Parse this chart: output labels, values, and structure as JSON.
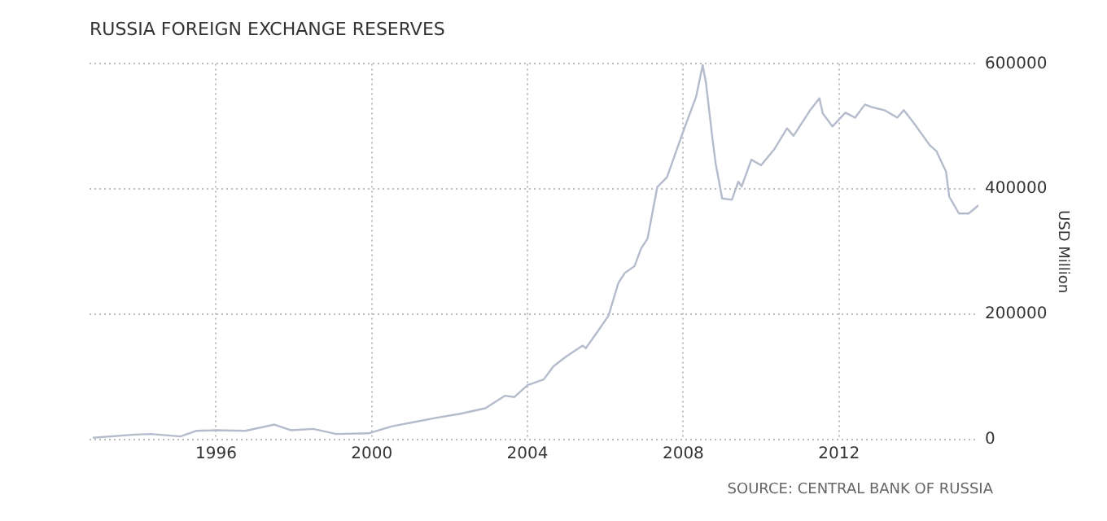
{
  "chart_data": {
    "type": "line",
    "title": "RUSSIA FOREIGN EXCHANGE RESERVES",
    "ylabel": "USD Million",
    "annotations": [
      "SOURCE: CENTRAL BANK OF RUSSIA"
    ],
    "x": [
      "1992-11",
      "1993-12",
      "1994-05",
      "1995-02",
      "1995-07",
      "1996-01",
      "1996-10",
      "1997-07",
      "1997-12",
      "1998-07",
      "1999-02",
      "1999-12",
      "2000-07",
      "2001-02",
      "2001-09",
      "2002-04",
      "2002-12",
      "2003-06",
      "2003-09",
      "2004-01",
      "2004-06",
      "2004-09",
      "2005-01",
      "2005-06",
      "2005-07",
      "2005-10",
      "2006-02",
      "2006-05",
      "2006-07",
      "2006-10",
      "2006-12",
      "2007-02",
      "2007-05",
      "2007-08",
      "2008-01",
      "2008-05",
      "2008-07",
      "2008-08",
      "2008-10",
      "2008-11",
      "2009-01",
      "2009-04",
      "2009-06",
      "2009-07",
      "2009-10",
      "2010-01",
      "2010-05",
      "2010-09",
      "2010-11",
      "2011-04",
      "2011-07",
      "2011-08",
      "2011-11",
      "2012-03",
      "2012-06",
      "2012-09",
      "2012-11",
      "2013-03",
      "2013-07",
      "2013-09",
      "2013-12",
      "2014-05",
      "2014-07",
      "2014-10",
      "2014-11",
      "2015-02",
      "2015-05",
      "2015-08"
    ],
    "series": [
      {
        "color": "#b4bccc",
        "values": [
          3000,
          8000,
          9000,
          5000,
          14000,
          15000,
          14000,
          24000,
          15000,
          17000,
          9000,
          10000,
          21000,
          28000,
          35000,
          41000,
          50000,
          70000,
          68000,
          87000,
          96000,
          117000,
          133000,
          150000,
          146000,
          168000,
          198000,
          250000,
          266000,
          277000,
          305000,
          321000,
          403000,
          419000,
          492000,
          548000,
          598000,
          570000,
          481000,
          441000,
          385000,
          383000,
          412000,
          404000,
          447000,
          438000,
          463000,
          497000,
          485000,
          525000,
          545000,
          521000,
          500000,
          522000,
          514000,
          535000,
          531000,
          526000,
          514000,
          526000,
          506000,
          470000,
          461000,
          428000,
          388000,
          361000,
          361000,
          374000
        ]
      }
    ],
    "xlim": [
      "1992-10",
      "2015-08"
    ],
    "xticks": [
      "1996",
      "2000",
      "2004",
      "2008",
      "2012"
    ],
    "ylim": [
      0,
      600000
    ],
    "yticks": [
      0,
      200000,
      400000,
      600000
    ],
    "grid": true,
    "legend": false,
    "marker": "none",
    "line_style": "solid"
  }
}
